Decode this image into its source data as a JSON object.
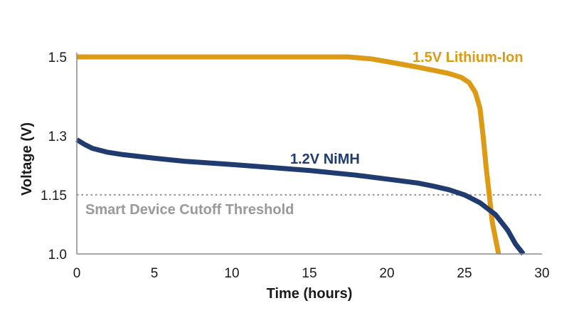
{
  "chart_data": {
    "type": "line",
    "xlabel": "Time (hours)",
    "ylabel": "Voltage (V)",
    "xlim": [
      0,
      30
    ],
    "ylim": [
      1.0,
      1.5
    ],
    "x_ticks": [
      0,
      5,
      10,
      15,
      20,
      25,
      30
    ],
    "y_ticks": [
      {
        "value": 1.0,
        "label": "1.0"
      },
      {
        "value": 1.15,
        "label": "1.15"
      },
      {
        "value": 1.3,
        "label": "1.3"
      },
      {
        "value": 1.5,
        "label": "1.5"
      }
    ],
    "grid": false,
    "series": [
      {
        "name": "1.5V Lithium-Ion",
        "color": "#DC9A15",
        "points": [
          [
            0,
            1.5
          ],
          [
            17.5,
            1.5
          ],
          [
            19,
            1.495
          ],
          [
            20,
            1.488
          ],
          [
            21,
            1.481
          ],
          [
            22,
            1.474
          ],
          [
            23,
            1.466
          ],
          [
            24,
            1.458
          ],
          [
            24.8,
            1.448
          ],
          [
            25.3,
            1.435
          ],
          [
            25.7,
            1.41
          ],
          [
            26,
            1.37
          ],
          [
            26.2,
            1.3
          ],
          [
            26.4,
            1.22
          ],
          [
            26.6,
            1.15
          ],
          [
            26.8,
            1.08
          ],
          [
            27,
            1.04
          ],
          [
            27.2,
            1.0
          ]
        ]
      },
      {
        "name": "1.2V NiMH",
        "color": "#1F3B70",
        "points": [
          [
            0,
            1.29
          ],
          [
            0.5,
            1.278
          ],
          [
            1,
            1.268
          ],
          [
            2,
            1.258
          ],
          [
            3,
            1.252
          ],
          [
            5,
            1.243
          ],
          [
            7,
            1.235
          ],
          [
            10,
            1.227
          ],
          [
            13,
            1.218
          ],
          [
            15,
            1.212
          ],
          [
            18,
            1.2
          ],
          [
            20,
            1.19
          ],
          [
            22,
            1.18
          ],
          [
            23,
            1.172
          ],
          [
            24,
            1.163
          ],
          [
            25,
            1.15
          ],
          [
            26,
            1.13
          ],
          [
            27,
            1.1
          ],
          [
            27.8,
            1.06
          ],
          [
            28.3,
            1.025
          ],
          [
            28.8,
            1.0
          ]
        ]
      }
    ],
    "threshold": {
      "value": 1.15,
      "label": "Smart Device Cutoff Threshold",
      "color": "#999999"
    }
  }
}
